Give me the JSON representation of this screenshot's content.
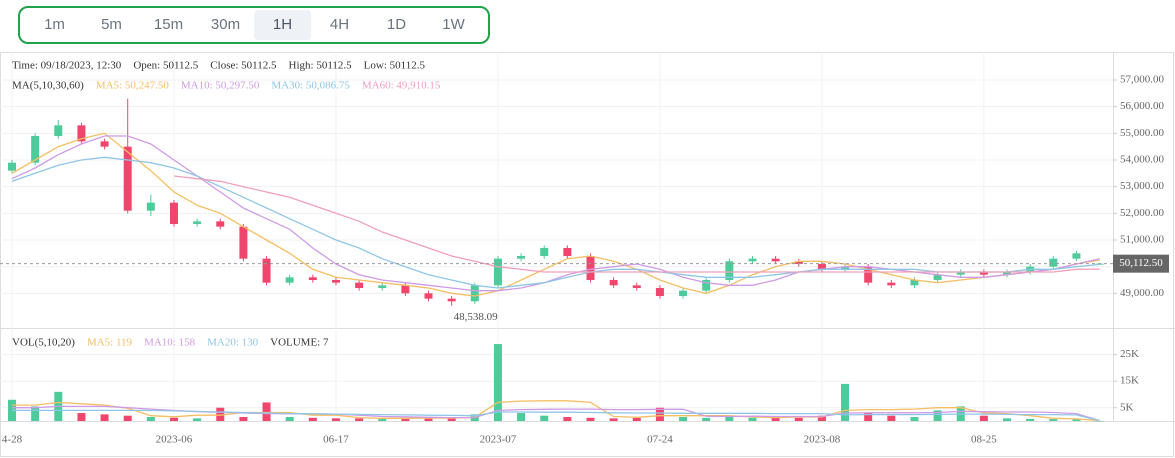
{
  "timeframes": [
    "1m",
    "5m",
    "15m",
    "30m",
    "1H",
    "4H",
    "1D",
    "1W"
  ],
  "selected_timeframe": 4,
  "chart_data": {
    "type": "candlestick",
    "info": [
      "Time: 09/18/2023, 12:30",
      "Open: 50112.5",
      "Close: 50112.5",
      "High: 50112.5",
      "Low: 50112.5"
    ],
    "ma_title": "MA(5,10,30,60)",
    "categories": [
      "4-28",
      null,
      null,
      null,
      null,
      null,
      null,
      "2023-06",
      null,
      null,
      null,
      null,
      null,
      null,
      "06-17",
      null,
      null,
      null,
      null,
      null,
      null,
      "2023-07",
      null,
      null,
      null,
      null,
      null,
      null,
      "07-24",
      null,
      null,
      null,
      null,
      null,
      null,
      "2023-08",
      null,
      null,
      null,
      null,
      null,
      null,
      "08-25",
      null,
      null,
      null,
      null,
      null
    ],
    "open": [
      53600,
      53900,
      54900,
      55300,
      54700,
      54500,
      52100,
      52400,
      51600,
      51700,
      51500,
      50300,
      49400,
      49600,
      49500,
      49400,
      49200,
      49300,
      49000,
      48800,
      48700,
      49300,
      50300,
      50400,
      50700,
      50400,
      49500,
      49300,
      49200,
      48900,
      49100,
      49500,
      50200,
      50300,
      50200,
      50100,
      49900,
      50000,
      49400,
      49300,
      49500,
      49700,
      49800,
      49700,
      49800,
      50000,
      50300,
      50112.5
    ],
    "close": [
      53900,
      54900,
      55300,
      54700,
      54500,
      52100,
      52400,
      51600,
      51700,
      51500,
      50300,
      49400,
      49600,
      49500,
      49400,
      49200,
      49300,
      49000,
      48800,
      48700,
      49300,
      50300,
      50400,
      50700,
      50400,
      49500,
      49300,
      49200,
      48900,
      49100,
      49500,
      50200,
      50300,
      50200,
      50100,
      49900,
      50000,
      49400,
      49300,
      49500,
      49700,
      49800,
      49700,
      49800,
      50000,
      50300,
      50500,
      50112.5
    ],
    "high": [
      54000,
      55000,
      55500,
      55400,
      54800,
      56300,
      52700,
      52500,
      51800,
      51800,
      51600,
      50400,
      49700,
      49700,
      49600,
      49500,
      49400,
      49400,
      49100,
      48900,
      49400,
      50400,
      50500,
      50800,
      50800,
      50500,
      49600,
      49400,
      49300,
      49200,
      49600,
      50300,
      50400,
      50400,
      50300,
      50200,
      50100,
      50100,
      49500,
      49600,
      49800,
      49900,
      49900,
      49900,
      50100,
      50400,
      50600,
      50112.5
    ],
    "low": [
      53500,
      53800,
      54800,
      54600,
      54400,
      52000,
      51900,
      51500,
      51500,
      51400,
      50200,
      49300,
      49300,
      49400,
      49300,
      49100,
      49100,
      48900,
      48700,
      48538.09,
      48600,
      49200,
      50200,
      50300,
      50300,
      49400,
      49200,
      49100,
      48800,
      48800,
      49000,
      49400,
      50100,
      50100,
      50000,
      49800,
      49800,
      49300,
      49200,
      49200,
      49400,
      49600,
      49600,
      49600,
      49700,
      49900,
      50200,
      50112.5
    ],
    "min_label": "48,538.09",
    "up_color": "#4ecb9b",
    "down_color": "#f0466e",
    "series": [
      {
        "name": "MA5: 50,247.50",
        "color": "#f5be62",
        "values": [
          53500,
          54000,
          54500,
          54800,
          55000,
          54300,
          53600,
          52800,
          52300,
          52000,
          51500,
          51000,
          50500,
          49900,
          49600,
          49500,
          49400,
          49300,
          49200,
          49000,
          48900,
          49100,
          49500,
          49900,
          50300,
          50400,
          50200,
          49900,
          49500,
          49200,
          49000,
          49300,
          49700,
          50000,
          50200,
          50200,
          50100,
          49900,
          49700,
          49500,
          49400,
          49500,
          49600,
          49700,
          49800,
          49900,
          50100,
          50247.5
        ]
      },
      {
        "name": "MA10: 50,297.50",
        "color": "#cf9be6",
        "values": [
          53300,
          53700,
          54200,
          54600,
          54900,
          54900,
          54600,
          54000,
          53400,
          52800,
          52200,
          51800,
          51400,
          50700,
          50100,
          49700,
          49500,
          49400,
          49300,
          49200,
          49100,
          49100,
          49200,
          49400,
          49700,
          49900,
          50000,
          50100,
          49900,
          49600,
          49400,
          49300,
          49300,
          49500,
          49800,
          49900,
          50000,
          50000,
          49900,
          49800,
          49700,
          49600,
          49600,
          49700,
          49800,
          49900,
          50100,
          50297.5
        ]
      },
      {
        "name": "MA30: 50,086.75",
        "color": "#8fc6e8",
        "values": [
          53200,
          53500,
          53800,
          54000,
          54100,
          54000,
          53900,
          53700,
          53400,
          53000,
          52600,
          52200,
          51800,
          51400,
          51000,
          50700,
          50300,
          50000,
          49700,
          49500,
          49300,
          49200,
          49300,
          49400,
          49600,
          49800,
          49900,
          49900,
          49800,
          49700,
          49600,
          49600,
          49600,
          49700,
          49800,
          49900,
          49900,
          49900,
          49900,
          49900,
          49800,
          49800,
          49800,
          49800,
          49900,
          49900,
          50000,
          50086.75
        ]
      },
      {
        "name": "MA60: 49,910.15",
        "color": "#f0a0b8",
        "values": [
          null,
          null,
          null,
          null,
          null,
          null,
          null,
          53400,
          53300,
          53200,
          53000,
          52800,
          52600,
          52300,
          52000,
          51700,
          51300,
          51000,
          50700,
          50400,
          50200,
          50000,
          49900,
          49800,
          49800,
          49800,
          49800,
          49800,
          49800,
          49800,
          49800,
          49800,
          49800,
          49800,
          49800,
          49800,
          49800,
          49800,
          49800,
          49800,
          49800,
          49800,
          49800,
          49800,
          49800,
          49800,
          49900,
          49910.15
        ]
      }
    ],
    "last_price": 50112.5,
    "last_price_label": "50,112.50",
    "ylim": [
      47700,
      58050
    ],
    "yticks": [
      {
        "value": 49000,
        "label": "49,000.00"
      },
      {
        "value": 50000,
        "label": "50,000.00"
      },
      {
        "value": 51000,
        "label": "51,000.00"
      },
      {
        "value": 52000,
        "label": "52,000.00"
      },
      {
        "value": 53000,
        "label": "53,000.00"
      },
      {
        "value": 54000,
        "label": "54,000.00"
      },
      {
        "value": 55000,
        "label": "55,000.00"
      },
      {
        "value": 56000,
        "label": "56,000.00"
      },
      {
        "value": 57000,
        "label": "57,000.00"
      }
    ],
    "volume": {
      "title": "VOL(5,10,20)",
      "current_label": "VOLUME: 7",
      "values": [
        8000,
        5500,
        11000,
        3000,
        2500,
        2000,
        1500,
        1200,
        1000,
        5000,
        1500,
        7000,
        1500,
        1200,
        1000,
        1000,
        800,
        1000,
        1200,
        1500,
        2500,
        29000,
        3000,
        2000,
        1500,
        1200,
        1000,
        1200,
        5000,
        1500,
        1200,
        1500,
        1200,
        1500,
        1200,
        2000,
        14000,
        3000,
        2000,
        1500,
        4000,
        5500,
        2000,
        1000,
        800,
        700,
        700,
        7
      ],
      "series": [
        {
          "name": "MA5: 119",
          "color": "#f5be62",
          "values": [
            6000,
            6000,
            7000,
            6500,
            6000,
            4800,
            2000,
            1600,
            2200,
            2200,
            3200,
            3200,
            3200,
            2200,
            2200,
            1300,
            1000,
            1000,
            1100,
            1100,
            1400,
            7000,
            7500,
            7600,
            7600,
            7000,
            1700,
            1400,
            2000,
            2000,
            2000,
            2000,
            1500,
            1300,
            1500,
            1500,
            4000,
            4300,
            4300,
            4500,
            5000,
            5000,
            3000,
            2800,
            2000,
            1000,
            800,
            119
          ]
        },
        {
          "name": "MA10: 158",
          "color": "#cf9be6",
          "values": [
            5000,
            5000,
            5500,
            5500,
            5500,
            5000,
            4500,
            4000,
            3500,
            3300,
            3000,
            2800,
            2700,
            2700,
            2600,
            2200,
            1700,
            1600,
            1400,
            1300,
            1300,
            4000,
            4300,
            4400,
            4500,
            4500,
            4300,
            4300,
            4400,
            4400,
            1800,
            1700,
            1800,
            1700,
            1700,
            1700,
            3000,
            3100,
            3100,
            3100,
            3200,
            3600,
            3500,
            3400,
            3400,
            3200,
            2800,
            158
          ]
        },
        {
          "name": "MA20: 130",
          "color": "#8fc6e8",
          "values": [
            4000,
            4000,
            4000,
            4000,
            4000,
            4000,
            4000,
            3800,
            3600,
            3400,
            3200,
            3000,
            2800,
            2700,
            2600,
            2500,
            2400,
            2300,
            2200,
            2100,
            2000,
            3400,
            3400,
            3300,
            3300,
            3200,
            3100,
            3000,
            3000,
            2900,
            2900,
            2900,
            2900,
            2800,
            2800,
            2800,
            2300,
            2400,
            2400,
            2400,
            2500,
            2600,
            2600,
            2500,
            2400,
            2400,
            2300,
            130
          ]
        }
      ],
      "ylim": [
        0,
        34300
      ],
      "yticks": [
        {
          "value": 5000,
          "label": "5K"
        },
        {
          "value": 15000,
          "label": "15K"
        },
        {
          "value": 25000,
          "label": "25K"
        }
      ]
    }
  }
}
